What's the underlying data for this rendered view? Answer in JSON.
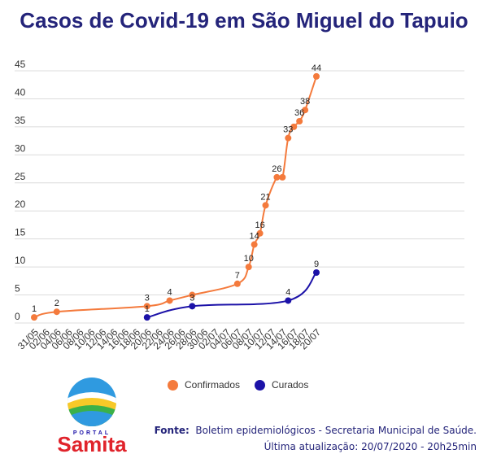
{
  "title": "Casos de Covid-19 em São Miguel do Tapuio",
  "chart_data": {
    "type": "line",
    "title": "Casos de Covid-19 em São Miguel do Tapuio",
    "xlabel": "",
    "ylabel": "",
    "ylim": [
      0,
      45
    ],
    "yticks": [
      "0",
      "5",
      "10",
      "15",
      "20",
      "25",
      "30",
      "35",
      "40",
      "45"
    ],
    "xticks": [
      "31/05",
      "02/06",
      "04/06",
      "06/06",
      "08/06",
      "10/06",
      "12/06",
      "14/06",
      "16/06",
      "18/06",
      "20/06",
      "22/06",
      "24/06",
      "26/06",
      "28/06",
      "30/06",
      "02/07",
      "04/07",
      "06/07",
      "08/07",
      "10/07",
      "12/07",
      "14/07",
      "16/07",
      "18/07",
      "20/07"
    ],
    "grid": true,
    "legend_position": "bottom",
    "series": [
      {
        "name": "Confirmados",
        "color": "#f47a3c",
        "points": [
          {
            "x": "31/05",
            "y": 1,
            "label": "1"
          },
          {
            "x": "04/06",
            "y": 2,
            "label": "2"
          },
          {
            "x": "20/06",
            "y": 3,
            "label": "3"
          },
          {
            "x": "24/06",
            "y": 4,
            "label": "4"
          },
          {
            "x": "28/06",
            "y": 5,
            "label": ""
          },
          {
            "x": "06/07",
            "y": 7,
            "label": "7"
          },
          {
            "x": "08/07",
            "y": 10,
            "label": "10"
          },
          {
            "x": "09/07",
            "y": 14,
            "label": "14"
          },
          {
            "x": "10/07",
            "y": 16,
            "label": "16"
          },
          {
            "x": "11/07",
            "y": 21,
            "label": "21"
          },
          {
            "x": "13/07",
            "y": 26,
            "label": "26"
          },
          {
            "x": "14/07",
            "y": 26,
            "label": ""
          },
          {
            "x": "15/07",
            "y": 33,
            "label": "33"
          },
          {
            "x": "16/07",
            "y": 35,
            "label": ""
          },
          {
            "x": "17/07",
            "y": 36,
            "label": "36"
          },
          {
            "x": "18/07",
            "y": 38,
            "label": "38"
          },
          {
            "x": "20/07",
            "y": 44,
            "label": "44"
          }
        ]
      },
      {
        "name": "Curados",
        "color": "#1c12a8",
        "points": [
          {
            "x": "20/06",
            "y": 1,
            "label": "1"
          },
          {
            "x": "28/06",
            "y": 3,
            "label": "3"
          },
          {
            "x": "15/07",
            "y": 4,
            "label": "4"
          },
          {
            "x": "20/07",
            "y": 9,
            "label": "9"
          }
        ]
      }
    ]
  },
  "footer": {
    "source_label": "Fonte:",
    "source_text": "Boletim epidemiológicos - Secretaria Municipal de Saúde.",
    "update_text": "Última atualização: 20/07/2020 - 20h25min"
  },
  "logo": {
    "brand_small": "PORTAL",
    "brand": "Samita"
  }
}
